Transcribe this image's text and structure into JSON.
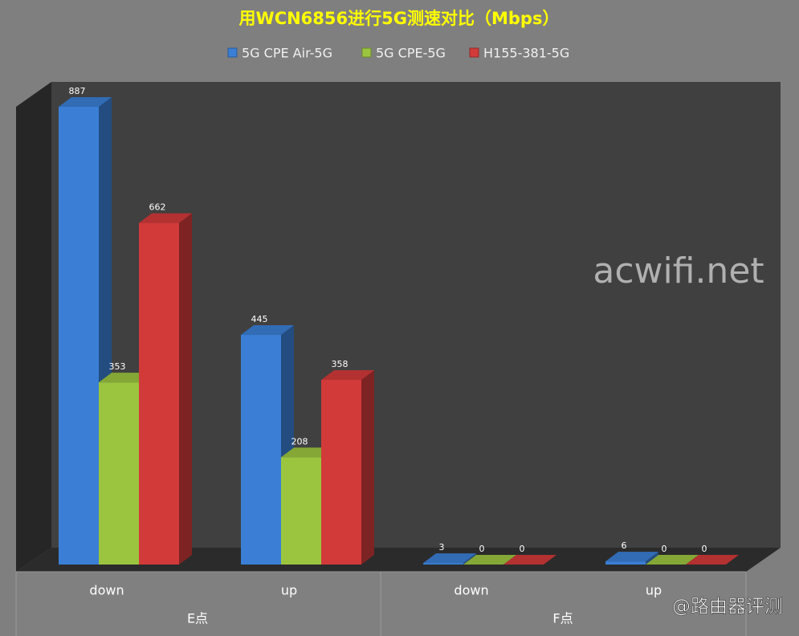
{
  "chart_data": {
    "type": "bar",
    "title": "用WCN6856进行5G测速对比（Mbps）",
    "categories": [
      "down",
      "up",
      "down",
      "up"
    ],
    "group_labels": [
      "E点",
      "F点"
    ],
    "series": [
      {
        "name": "5G CPE Air-5G",
        "color": "#3a7fd5",
        "values": [
          887,
          445,
          3,
          6
        ]
      },
      {
        "name": "5G CPE-5G",
        "color": "#9bc53f",
        "values": [
          353,
          208,
          0,
          0
        ]
      },
      {
        "name": "H155-381-5G",
        "color": "#d23a3a",
        "values": [
          662,
          358,
          0,
          0
        ]
      }
    ],
    "legend": "top"
  },
  "watermarks": [
    "acwifi.net",
    "@路由器评测"
  ]
}
